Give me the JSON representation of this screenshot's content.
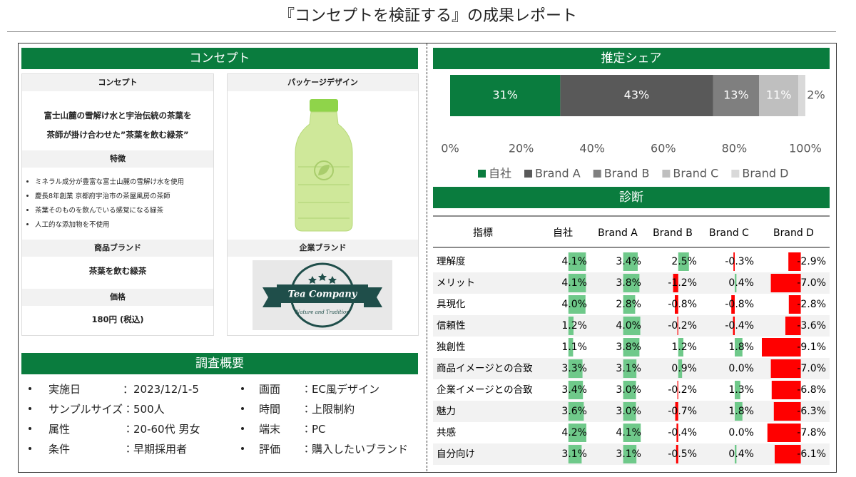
{
  "header": {
    "title": "『コンセプトを検証する』の成果レポート"
  },
  "concept": {
    "heading": "コンセプト",
    "concept_label": "コンセプト",
    "concept_lines": [
      "富士山麓の雪解け水と宇治伝統の茶葉を",
      "茶師が掛け合わせた”茶葉を飲む緑茶”"
    ],
    "features_label": "特徴",
    "features": [
      "ミネラル成分が豊富な富士山麓の雪解け水を使用",
      "慶長8年創業 京都府宇治市の茶屋風房の茶師",
      "茶葉そのものを飲んでいる感覚になる緑茶",
      "人工的な添加物を不使用"
    ],
    "product_brand_label": "商品ブランド",
    "product_brand": "茶葉を飲む緑茶",
    "price_label": "価格",
    "price": "180円 (税込)",
    "package_label": "パッケージデザイン",
    "company_brand_label": "企業ブランド",
    "logo_name": "Tea Company",
    "logo_tagline": "Nature and Tradition"
  },
  "survey": {
    "heading": "調査概要",
    "items": [
      {
        "label": "実施日",
        "value": "：2023/12/1-5"
      },
      {
        "label": "サンプルサイズ",
        "value": "：500人"
      },
      {
        "label": "属性",
        "value": "：20-60代 男女"
      },
      {
        "label": "条件",
        "value": "：早期採用者"
      },
      {
        "label": "画面",
        "value": "：EC風デザイン"
      },
      {
        "label": "時間",
        "value": "：上限制約"
      },
      {
        "label": "端末",
        "value": "：PC"
      },
      {
        "label": "評価",
        "value": "：購入したいブランド"
      }
    ]
  },
  "chart_data": {
    "type": "stacked_bar",
    "title": "推定シェア",
    "series": [
      {
        "name": "自社",
        "color": "#0a7c3e",
        "values": [
          31
        ],
        "value_labels": [
          "31%"
        ]
      },
      {
        "name": "Brand A",
        "color": "#595959",
        "values": [
          43
        ],
        "value_labels": [
          "43%"
        ]
      },
      {
        "name": "Brand B",
        "color": "#7f7f7f",
        "values": [
          13
        ],
        "value_labels": [
          "13%"
        ]
      },
      {
        "name": "Brand C",
        "color": "#bfbfbf",
        "values": [
          11
        ],
        "value_labels": [
          "11%"
        ]
      },
      {
        "name": "Brand D",
        "color": "#d9d9d9",
        "values": [
          2
        ],
        "value_labels": [
          "2%"
        ]
      }
    ],
    "xlim": [
      0,
      100
    ],
    "xticks": [
      {
        "value": 0,
        "label": "0%"
      },
      {
        "value": 20,
        "label": "20%"
      },
      {
        "value": 40,
        "label": "40%"
      },
      {
        "value": 60,
        "label": "60%"
      },
      {
        "value": 80,
        "label": "80%"
      },
      {
        "value": 100,
        "label": "100%"
      }
    ],
    "legend": "bottom"
  },
  "diagnosis": {
    "heading": "診断",
    "columns": [
      "指標",
      "自社",
      "Brand A",
      "Brand B",
      "Brand C",
      "Brand D"
    ],
    "positive_color": "#6fc98a",
    "negative_color": "#ff0000",
    "rows": [
      {
        "label": "理解度",
        "values": [
          4.1,
          3.4,
          2.5,
          -0.3,
          -2.9
        ],
        "value_labels": [
          "4.1%",
          "3.4%",
          "2.5%",
          "-0.3%",
          "-2.9%"
        ]
      },
      {
        "label": "メリット",
        "values": [
          4.1,
          3.8,
          -1.2,
          0.4,
          -7.0
        ],
        "value_labels": [
          "4.1%",
          "3.8%",
          "-1.2%",
          "0.4%",
          "-7.0%"
        ]
      },
      {
        "label": "具現化",
        "values": [
          4.0,
          2.8,
          -0.8,
          -0.8,
          -2.8
        ],
        "value_labels": [
          "4.0%",
          "2.8%",
          "-0.8%",
          "-0.8%",
          "-2.8%"
        ]
      },
      {
        "label": "信頼性",
        "values": [
          1.2,
          4.0,
          -0.2,
          -0.4,
          -3.6
        ],
        "value_labels": [
          "1.2%",
          "4.0%",
          "-0.2%",
          "-0.4%",
          "-3.6%"
        ]
      },
      {
        "label": "独創性",
        "values": [
          1.1,
          3.8,
          1.2,
          1.8,
          -9.1
        ],
        "value_labels": [
          "1.1%",
          "3.8%",
          "1.2%",
          "1.8%",
          "-9.1%"
        ]
      },
      {
        "label": "商品イメージとの合致",
        "values": [
          3.3,
          3.1,
          0.9,
          0.0,
          -7.0
        ],
        "value_labels": [
          "3.3%",
          "3.1%",
          "0.9%",
          "0.0%",
          "-7.0%"
        ]
      },
      {
        "label": "企業イメージとの合致",
        "values": [
          3.4,
          3.0,
          -0.2,
          1.3,
          -6.8
        ],
        "value_labels": [
          "3.4%",
          "3.0%",
          "-0.2%",
          "1.3%",
          "-6.8%"
        ]
      },
      {
        "label": "魅力",
        "values": [
          3.6,
          3.0,
          -0.7,
          1.8,
          -6.3
        ],
        "value_labels": [
          "3.6%",
          "3.0%",
          "-0.7%",
          "1.8%",
          "-6.3%"
        ]
      },
      {
        "label": "共感",
        "values": [
          4.2,
          4.1,
          -0.4,
          0.0,
          -7.8
        ],
        "value_labels": [
          "4.2%",
          "4.1%",
          "-0.4%",
          "0.0%",
          "-7.8%"
        ]
      },
      {
        "label": "自分向け",
        "values": [
          3.1,
          3.1,
          -0.5,
          0.4,
          -6.1
        ],
        "value_labels": [
          "3.1%",
          "3.1%",
          "-0.5%",
          "0.4%",
          "-6.1%"
        ]
      }
    ]
  }
}
